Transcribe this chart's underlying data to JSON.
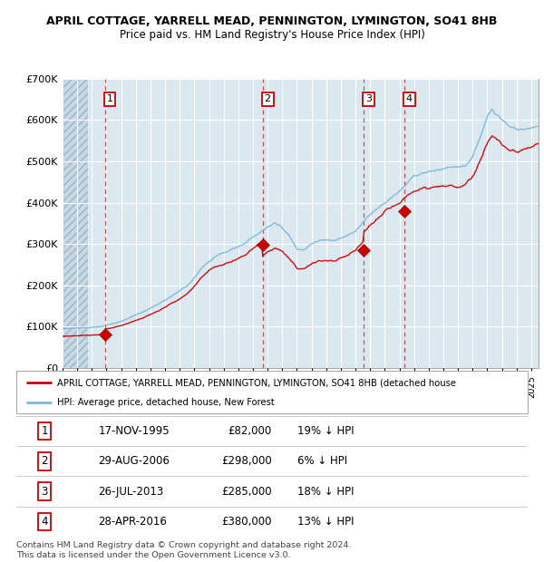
{
  "title1": "APRIL COTTAGE, YARRELL MEAD, PENNINGTON, LYMINGTON, SO41 8HB",
  "title2": "Price paid vs. HM Land Registry's House Price Index (HPI)",
  "ylim": [
    0,
    700000
  ],
  "yticks": [
    0,
    100000,
    200000,
    300000,
    400000,
    500000,
    600000,
    700000
  ],
  "ytick_labels": [
    "£0",
    "£100K",
    "£200K",
    "£300K",
    "£400K",
    "£500K",
    "£600K",
    "£700K"
  ],
  "xlim_start": 1993.0,
  "xlim_end": 2025.5,
  "hpi_color": "#7ab8d9",
  "property_color": "#cc0000",
  "sale_marker_color": "#cc0000",
  "dashed_line_color": "#cc3333",
  "plot_bg_color": "#dce8f0",
  "hatch_bg_color": "#c8d8e4",
  "sales": [
    {
      "label": "1",
      "date_num": 1995.88,
      "price": 82000,
      "note": "17-NOV-1995",
      "pct": "19% ↓ HPI"
    },
    {
      "label": "2",
      "date_num": 2006.66,
      "price": 298000,
      "note": "29-AUG-2006",
      "pct": "6% ↓ HPI"
    },
    {
      "label": "3",
      "date_num": 2013.56,
      "price": 285000,
      "note": "26-JUL-2013",
      "pct": "18% ↓ HPI"
    },
    {
      "label": "4",
      "date_num": 2016.33,
      "price": 380000,
      "note": "28-APR-2016",
      "pct": "13% ↓ HPI"
    }
  ],
  "legend_property": "APRIL COTTAGE, YARRELL MEAD, PENNINGTON, LYMINGTON, SO41 8HB (detached house",
  "legend_hpi": "HPI: Average price, detached house, New Forest",
  "footer": "Contains HM Land Registry data © Crown copyright and database right 2024.\nThis data is licensed under the Open Government Licence v3.0.",
  "table_rows": [
    [
      "1",
      "17-NOV-1995",
      "£82,000",
      "19% ↓ HPI"
    ],
    [
      "2",
      "29-AUG-2006",
      "£298,000",
      "6% ↓ HPI"
    ],
    [
      "3",
      "26-JUL-2013",
      "£285,000",
      "18% ↓ HPI"
    ],
    [
      "4",
      "28-APR-2016",
      "£380,000",
      "13% ↓ HPI"
    ]
  ]
}
